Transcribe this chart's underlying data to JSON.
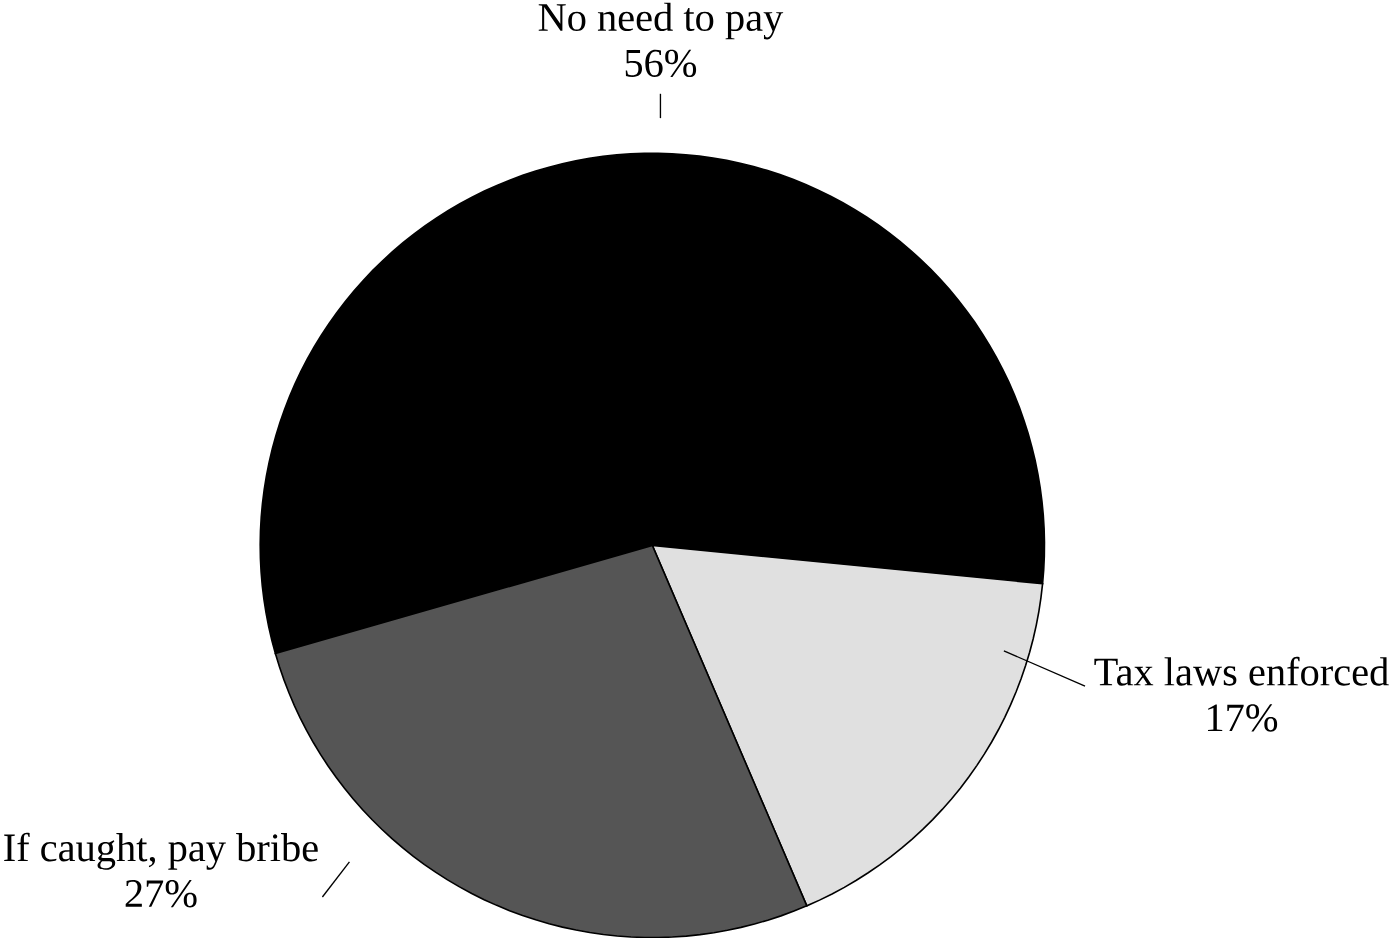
{
  "chart_data": {
    "type": "pie",
    "categories": [
      "No need to pay",
      "Tax laws enforced",
      "If caught, pay bribe"
    ],
    "values": [
      56,
      17,
      27
    ],
    "value_labels": [
      "56%",
      "17%",
      "27%"
    ],
    "colors": [
      "#000000",
      "#e0e0e0",
      "#555555"
    ]
  }
}
